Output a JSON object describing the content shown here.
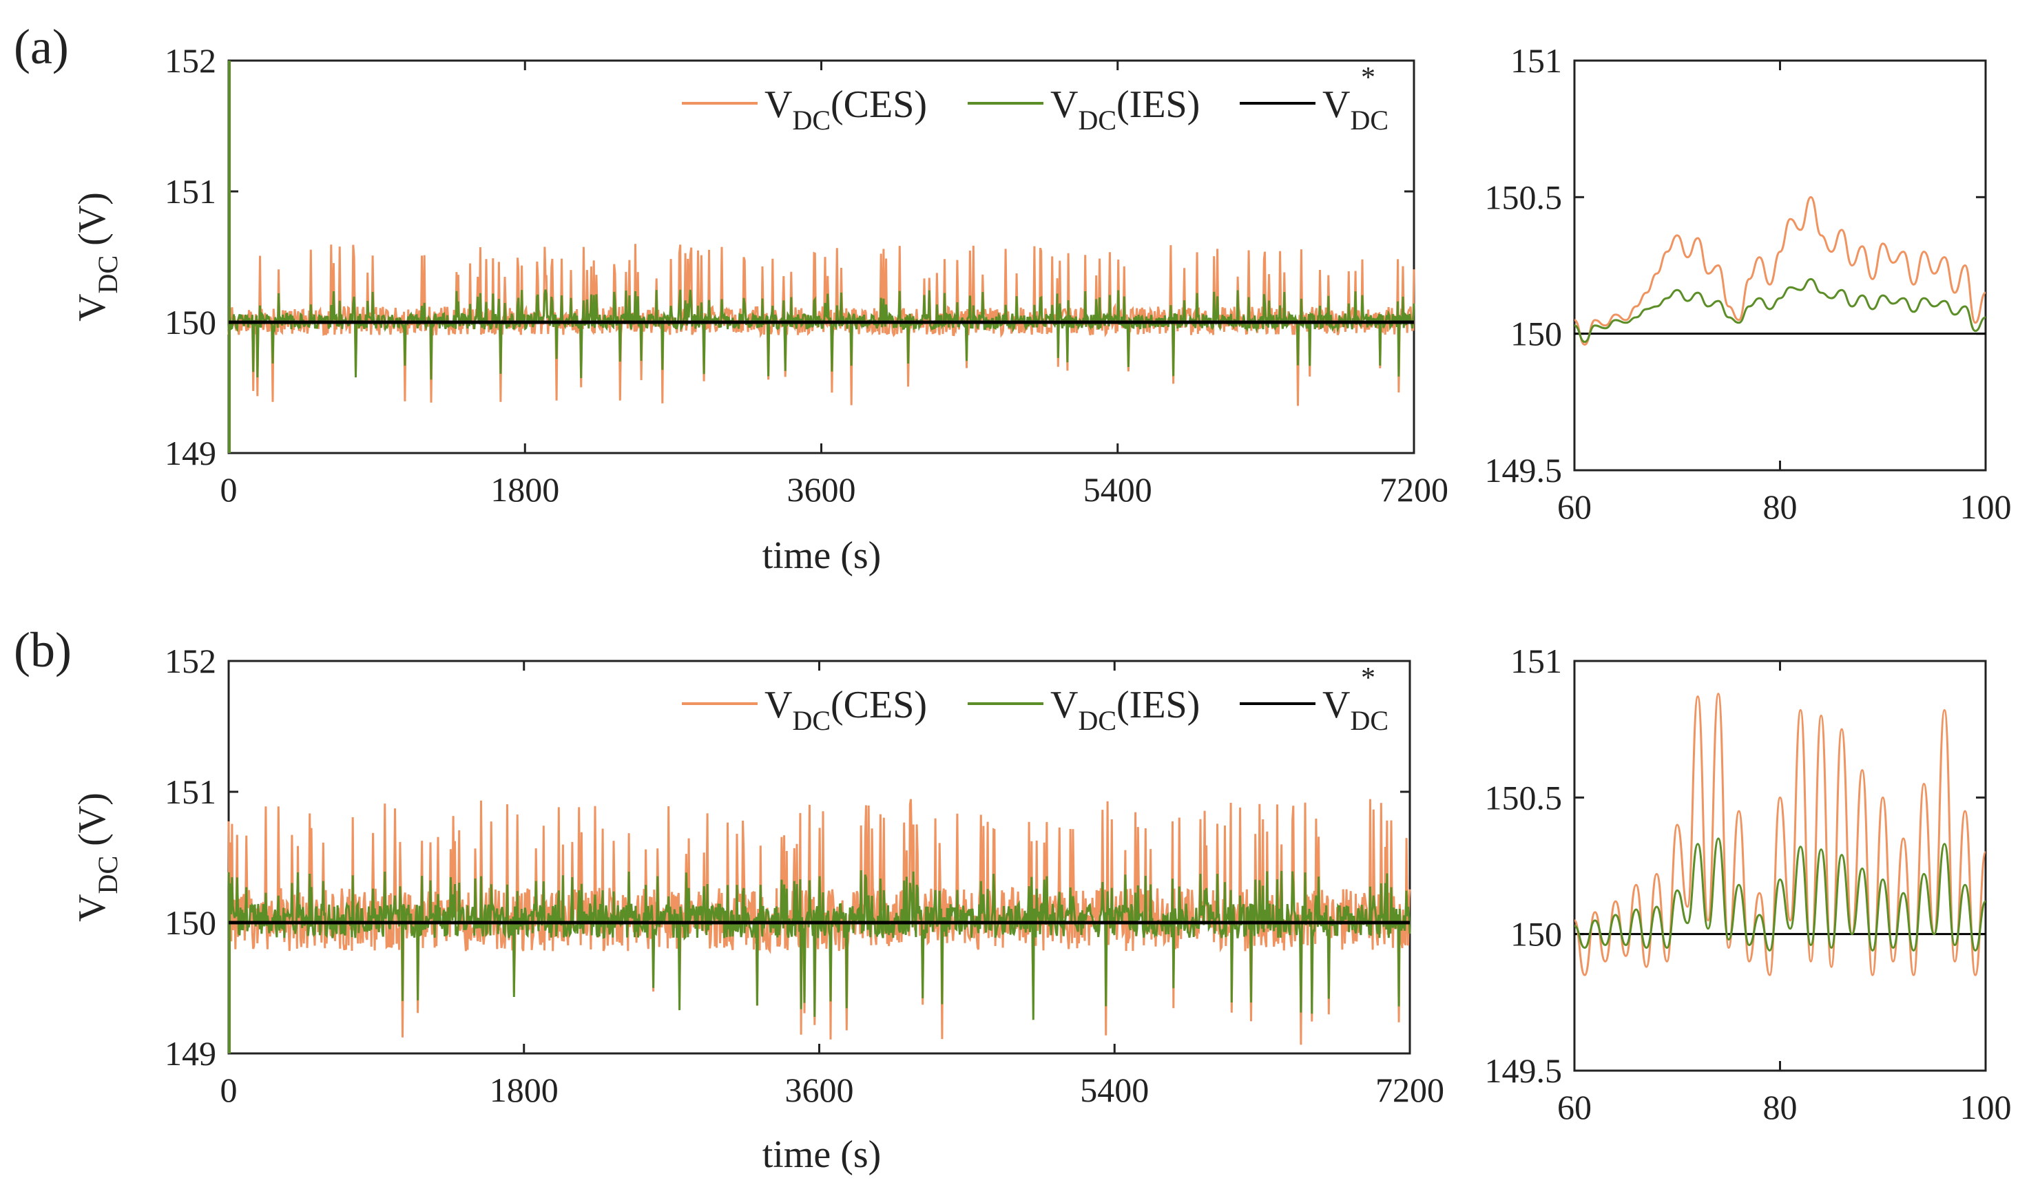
{
  "figure": {
    "panels": [
      {
        "id": "a",
        "label": "(a)",
        "main": {
          "type": "line",
          "xlabel": "time (s)",
          "ylabel_main": "V",
          "ylabel_sub": "DC",
          "ylabel_unit": "(V)",
          "xlim": [
            0,
            7200
          ],
          "ylim": [
            149,
            152
          ],
          "xticks": [
            "0",
            "1800",
            "3600",
            "5400",
            "7200"
          ],
          "yticks": [
            "149",
            "150",
            "151",
            "152"
          ],
          "reference": 150,
          "ces_spike_peak": 150.6,
          "ces_dip_min": 149.35,
          "ies_spike_peak": 150.25,
          "ies_dip_min": 149.55,
          "start_transient_peak": 152
        },
        "zoom": {
          "type": "line",
          "xlim": [
            60,
            100
          ],
          "ylim": [
            149.5,
            151
          ],
          "xticks": [
            "60",
            "80",
            "100"
          ],
          "yticks": [
            "149.5",
            "150",
            "150.5",
            "151"
          ],
          "reference": 150,
          "x": [
            60,
            61,
            62,
            63,
            64,
            65,
            66,
            67,
            68,
            69,
            70,
            71,
            72,
            73,
            74,
            75,
            76,
            77,
            78,
            79,
            80,
            81,
            82,
            83,
            84,
            85,
            86,
            87,
            88,
            89,
            90,
            91,
            92,
            93,
            94,
            95,
            96,
            97,
            98,
            99,
            100
          ],
          "ces": [
            150.05,
            149.96,
            150.05,
            150.03,
            150.07,
            150.05,
            150.1,
            150.15,
            150.22,
            150.3,
            150.36,
            150.28,
            150.35,
            150.22,
            150.25,
            150.1,
            150.05,
            150.2,
            150.28,
            150.18,
            150.3,
            150.42,
            150.38,
            150.5,
            150.36,
            150.3,
            150.38,
            150.25,
            150.32,
            150.2,
            150.33,
            150.26,
            150.3,
            150.18,
            150.3,
            150.22,
            150.28,
            150.15,
            150.25,
            150.04,
            150.15
          ],
          "ies": [
            150.03,
            149.97,
            150.03,
            150.02,
            150.05,
            150.04,
            150.06,
            150.09,
            150.1,
            150.13,
            150.16,
            150.12,
            150.15,
            150.1,
            150.12,
            150.06,
            150.04,
            150.1,
            150.13,
            150.09,
            150.13,
            150.17,
            150.16,
            150.2,
            150.15,
            150.13,
            150.16,
            150.1,
            150.14,
            150.09,
            150.14,
            150.11,
            150.13,
            150.08,
            150.13,
            150.1,
            150.12,
            150.07,
            150.1,
            150.01,
            150.06
          ]
        }
      },
      {
        "id": "b",
        "label": "(b)",
        "main": {
          "type": "line",
          "xlabel": "time (s)",
          "ylabel_main": "V",
          "ylabel_sub": "DC",
          "ylabel_unit": "(V)",
          "xlim": [
            0,
            7200
          ],
          "ylim": [
            149,
            152
          ],
          "xticks": [
            "0",
            "1800",
            "3600",
            "5400",
            "7200"
          ],
          "yticks": [
            "149",
            "150",
            "151",
            "152"
          ],
          "reference": 150,
          "ces_spike_peak": 150.95,
          "ces_dip_min": 149.05,
          "ies_spike_peak": 150.4,
          "ies_dip_min": 149.25,
          "start_transient_peak": 150.3
        },
        "zoom": {
          "type": "line",
          "xlim": [
            60,
            100
          ],
          "ylim": [
            149.5,
            151
          ],
          "xticks": [
            "60",
            "80",
            "100"
          ],
          "yticks": [
            "149.5",
            "150",
            "150.5",
            "151"
          ],
          "reference": 150,
          "x": [
            60,
            61,
            62,
            63,
            64,
            65,
            66,
            67,
            68,
            69,
            70,
            71,
            72,
            73,
            74,
            75,
            76,
            77,
            78,
            79,
            80,
            81,
            82,
            83,
            84,
            85,
            86,
            87,
            88,
            89,
            90,
            91,
            92,
            93,
            94,
            95,
            96,
            97,
            98,
            99,
            100
          ],
          "ces": [
            150.05,
            149.85,
            150.08,
            149.9,
            150.12,
            149.92,
            150.18,
            149.88,
            150.22,
            149.9,
            150.4,
            150.1,
            150.87,
            150.05,
            150.88,
            149.95,
            150.45,
            149.9,
            150.15,
            149.85,
            150.5,
            150.05,
            150.82,
            149.9,
            150.8,
            149.88,
            150.75,
            150.0,
            150.6,
            149.85,
            150.5,
            149.9,
            150.35,
            149.85,
            150.55,
            150.0,
            150.82,
            149.9,
            150.45,
            149.85,
            150.3
          ],
          "ies": [
            150.03,
            149.95,
            150.05,
            149.96,
            150.07,
            149.96,
            150.09,
            149.95,
            150.1,
            149.95,
            150.16,
            150.04,
            150.33,
            150.02,
            150.35,
            149.98,
            150.18,
            149.96,
            150.07,
            149.94,
            150.2,
            150.02,
            150.32,
            149.96,
            150.31,
            149.95,
            150.29,
            150.0,
            150.24,
            149.94,
            150.2,
            149.95,
            150.15,
            149.94,
            150.22,
            150.0,
            150.33,
            149.96,
            150.18,
            149.94,
            150.12
          ]
        }
      }
    ],
    "legend": {
      "ces": {
        "main": "V",
        "sub": "DC",
        "suffix": "(CES)"
      },
      "ies": {
        "main": "V",
        "sub": "DC",
        "suffix": "(IES)"
      },
      "ref": {
        "main": "V",
        "sub": "DC",
        "sup": "*"
      }
    },
    "colors": {
      "ces": "#ef9360",
      "ies": "#5c8e27",
      "ref": "#000000",
      "axis": "#222222"
    }
  },
  "chart_data": [
    {
      "type": "line",
      "title": "(a) main",
      "xlabel": "time (s)",
      "ylabel": "V_DC (V)",
      "xlim": [
        0,
        7200
      ],
      "ylim": [
        149,
        152
      ],
      "series": [
        {
          "name": "V_DC(CES)",
          "description": "fluctuates 149.35-150.6 V around 150 V"
        },
        {
          "name": "V_DC(IES)",
          "description": "fluctuates 149.55-150.25 V around 150 V"
        },
        {
          "name": "V*_DC",
          "values": [
            150,
            150
          ],
          "x": [
            0,
            7200
          ]
        }
      ]
    },
    {
      "type": "line",
      "title": "(a) zoom",
      "xlim": [
        60,
        100
      ],
      "ylim": [
        149.5,
        151
      ],
      "series": [
        {
          "name": "V_DC(CES)"
        },
        {
          "name": "V_DC(IES)"
        },
        {
          "name": "V*_DC",
          "values": [
            150,
            150
          ]
        }
      ]
    },
    {
      "type": "line",
      "title": "(b) main",
      "xlabel": "time (s)",
      "ylabel": "V_DC (V)",
      "xlim": [
        0,
        7200
      ],
      "ylim": [
        149,
        152
      ],
      "series": [
        {
          "name": "V_DC(CES)",
          "description": "fluctuates 149.05-150.95 V around 150 V"
        },
        {
          "name": "V_DC(IES)",
          "description": "fluctuates 149.25-150.4 V around 150 V"
        },
        {
          "name": "V*_DC",
          "values": [
            150,
            150
          ],
          "x": [
            0,
            7200
          ]
        }
      ]
    },
    {
      "type": "line",
      "title": "(b) zoom",
      "xlim": [
        60,
        100
      ],
      "ylim": [
        149.5,
        151
      ],
      "series": [
        {
          "name": "V_DC(CES)"
        },
        {
          "name": "V_DC(IES)"
        },
        {
          "name": "V*_DC",
          "values": [
            150,
            150
          ]
        }
      ]
    }
  ]
}
